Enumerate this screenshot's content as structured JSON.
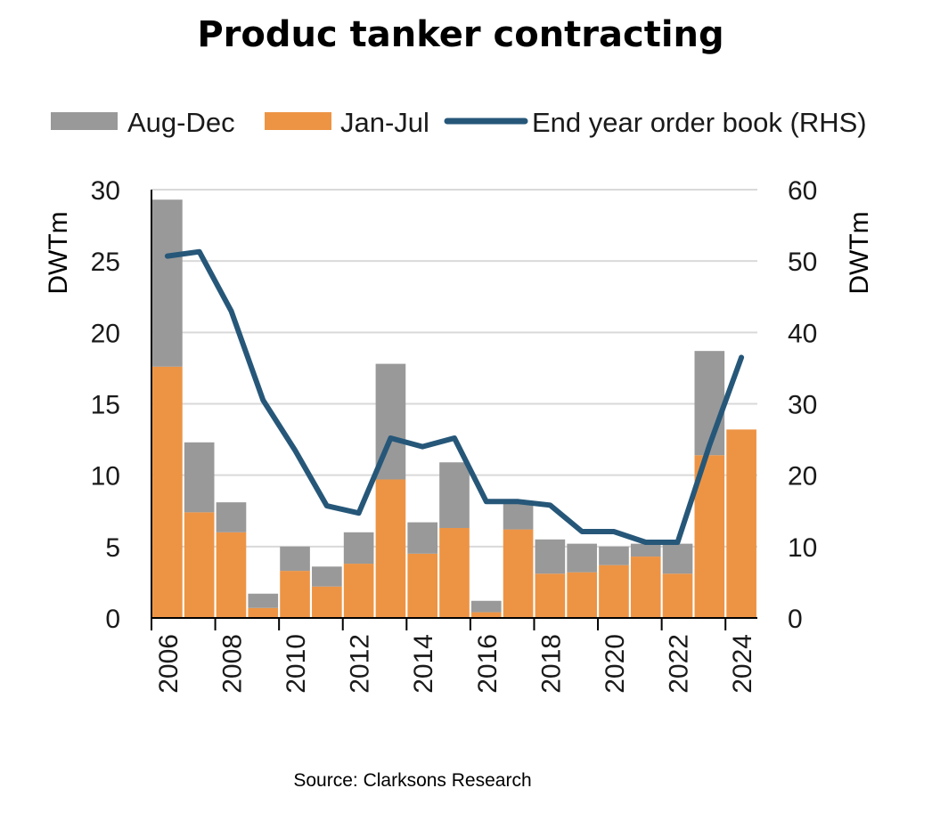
{
  "chart_data": {
    "type": "bar",
    "title": "Produc tanker contracting",
    "source": "Source: Clarksons Research",
    "ylabel": "DWTm",
    "ylabel_right": "DWTm",
    "ylim": [
      0,
      30
    ],
    "ylim_right": [
      0,
      60
    ],
    "yticks": [
      "0",
      "5",
      "10",
      "15",
      "20",
      "25",
      "30"
    ],
    "yticks_right": [
      "0",
      "10",
      "20",
      "30",
      "40",
      "50",
      "60"
    ],
    "categories": [
      "2006",
      "2007",
      "2008",
      "2009",
      "2010",
      "2011",
      "2012",
      "2013",
      "2014",
      "2015",
      "2016",
      "2017",
      "2018",
      "2019",
      "2020",
      "2021",
      "2022",
      "2023",
      "2024"
    ],
    "xtick_labels": [
      "2006",
      "2008",
      "2010",
      "2012",
      "2014",
      "2016",
      "2018",
      "2020",
      "2022",
      "2024"
    ],
    "legend_position": "top",
    "series": [
      {
        "name": "Aug-Dec",
        "kind": "stacked-bar",
        "color": "#999999",
        "values": [
          11.7,
          4.9,
          2.1,
          1.0,
          1.7,
          1.4,
          2.2,
          8.1,
          2.2,
          4.6,
          0.8,
          1.8,
          2.4,
          2.0,
          1.3,
          0.9,
          2.1,
          7.3,
          0
        ]
      },
      {
        "name": "Jan-Jul",
        "kind": "stacked-bar",
        "color": "#ed9444",
        "values": [
          17.6,
          7.4,
          6.0,
          0.7,
          3.3,
          2.2,
          3.8,
          9.7,
          4.5,
          6.3,
          0.4,
          6.2,
          3.1,
          3.2,
          3.7,
          4.3,
          3.1,
          11.4,
          13.2
        ]
      },
      {
        "name": "End year order book (RHS)",
        "kind": "line",
        "axis": "right",
        "color": "#265779",
        "values": [
          50.7,
          51.3,
          43.0,
          30.5,
          23.5,
          15.7,
          14.7,
          25.2,
          24.0,
          25.2,
          16.3,
          16.3,
          15.8,
          12.1,
          12.1,
          10.6,
          10.6,
          24.2,
          36.5
        ]
      }
    ]
  }
}
